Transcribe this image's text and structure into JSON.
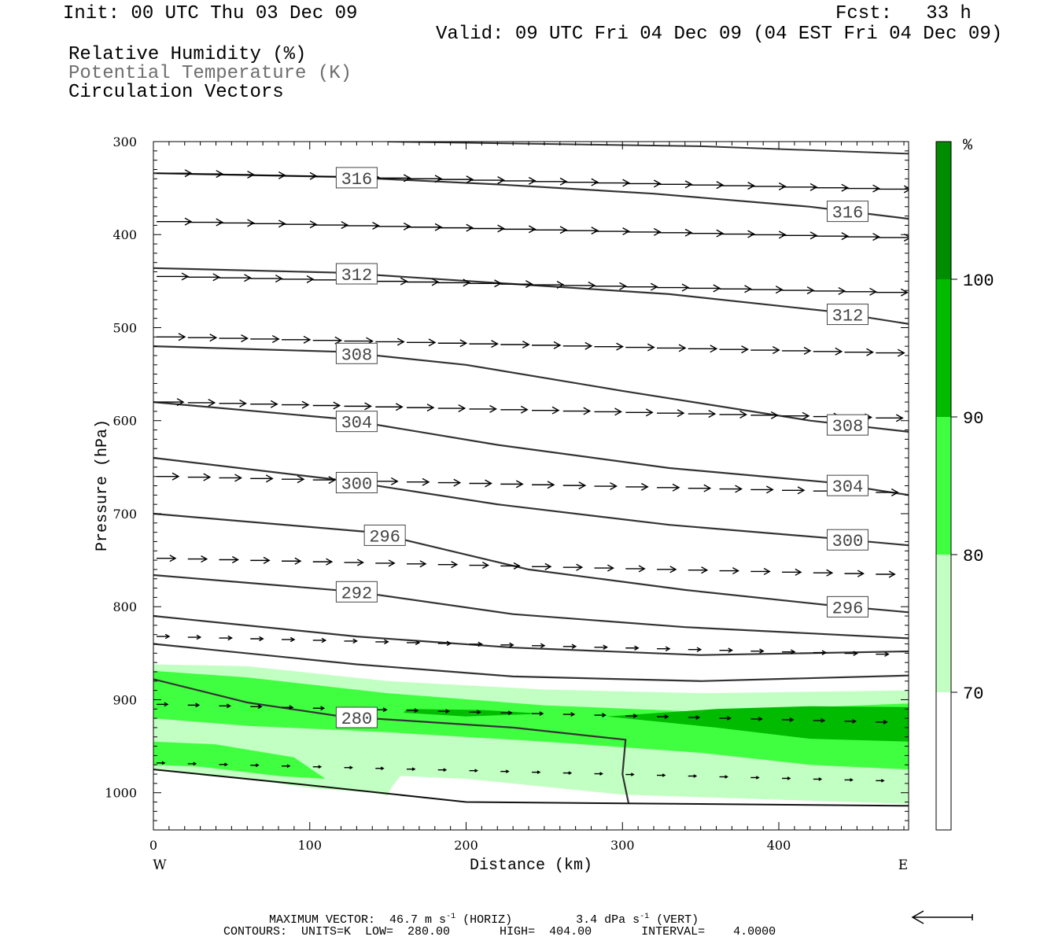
{
  "header": {
    "init": "Init: 00 UTC Thu 03 Dec 09",
    "fcst": "Fcst:   33 h",
    "valid": "Valid: 09 UTC Fri 04 Dec 09 (04 EST Fri 04 Dec 09)",
    "fields": [
      "Relative Humidity (%)",
      "Potential Temperature (K)",
      "Circulation Vectors"
    ]
  },
  "footer": {
    "max_vector_label": "MAXIMUM VECTOR:",
    "horiz_value": "46.7 m s",
    "horiz_unit": "(HORIZ)",
    "vert_value": "3.4 dPa s",
    "vert_unit": "(VERT)",
    "exponent": "-1",
    "contours": "CONTOURS:  UNITS=K  LOW=  280.00       HIGH=  404.00       INTERVAL=    4.0000"
  },
  "colors": {
    "rh70": "#c2ffc2",
    "rh80": "#40ff40",
    "rh90": "#00bb00",
    "rh100": "#008c00",
    "theta_line": "#333333"
  },
  "chart_data": {
    "type": "cross-section",
    "xlabel": "Distance (km)",
    "ylabel": "Pressure (hPa)",
    "xlim": [
      0,
      483
    ],
    "ylim": [
      1040,
      300
    ],
    "x_ticks": [
      0,
      100,
      200,
      300,
      400
    ],
    "y_ticks": [
      300,
      400,
      500,
      600,
      700,
      800,
      900,
      1000
    ],
    "x_end_labels": {
      "left": "W",
      "right": "E"
    },
    "colorbar": {
      "unit": "%",
      "levels": [
        70,
        80,
        90,
        100
      ],
      "tick_labels": [
        "70",
        "80",
        "90",
        "100"
      ]
    },
    "theta_contours": [
      {
        "level": 316,
        "points": [
          [
            0,
            334
          ],
          [
            120,
            338
          ],
          [
            220,
            346
          ],
          [
            320,
            356
          ],
          [
            420,
            370
          ],
          [
            483,
            383
          ]
        ],
        "labels": [
          {
            "text": "316",
            "x": 130
          },
          {
            "text": "316",
            "x": 444
          }
        ]
      },
      {
        "level": 312,
        "points": [
          [
            0,
            436
          ],
          [
            120,
            441
          ],
          [
            220,
            452
          ],
          [
            330,
            464
          ],
          [
            430,
            482
          ],
          [
            483,
            496
          ]
        ],
        "labels": [
          {
            "text": "312",
            "x": 130
          },
          {
            "text": "312",
            "x": 444
          }
        ]
      },
      {
        "level": 308,
        "points": [
          [
            0,
            520
          ],
          [
            120,
            526
          ],
          [
            200,
            540
          ],
          [
            300,
            568
          ],
          [
            420,
            600
          ],
          [
            483,
            612
          ]
        ],
        "labels": [
          {
            "text": "308",
            "x": 130
          },
          {
            "text": "308",
            "x": 444
          }
        ]
      },
      {
        "level": 304,
        "points": [
          [
            0,
            580
          ],
          [
            120,
            598
          ],
          [
            220,
            626
          ],
          [
            330,
            651
          ],
          [
            430,
            666
          ],
          [
            483,
            680
          ]
        ],
        "labels": [
          {
            "text": "304",
            "x": 130
          },
          {
            "text": "304",
            "x": 444
          }
        ]
      },
      {
        "level": 300,
        "points": [
          [
            0,
            640
          ],
          [
            120,
            664
          ],
          [
            220,
            690
          ],
          [
            330,
            712
          ],
          [
            430,
            726
          ],
          [
            483,
            734
          ]
        ],
        "labels": [
          {
            "text": "300",
            "x": 130
          },
          {
            "text": "300",
            "x": 444
          }
        ]
      },
      {
        "level": 296,
        "points": [
          [
            0,
            700
          ],
          [
            140,
            720
          ],
          [
            240,
            760
          ],
          [
            340,
            782
          ],
          [
            430,
            798
          ],
          [
            483,
            806
          ]
        ],
        "labels": [
          {
            "text": "296",
            "x": 148
          },
          {
            "text": "296",
            "x": 444
          }
        ]
      },
      {
        "level": 292,
        "points": [
          [
            0,
            766
          ],
          [
            130,
            784
          ],
          [
            230,
            808
          ],
          [
            340,
            822
          ],
          [
            483,
            834
          ]
        ],
        "labels": [
          {
            "text": "292",
            "x": 130
          }
        ]
      },
      {
        "level": 288,
        "points": [
          [
            0,
            810
          ],
          [
            130,
            832
          ],
          [
            230,
            844
          ],
          [
            350,
            852
          ],
          [
            483,
            848
          ]
        ],
        "labels": []
      },
      {
        "level": 284,
        "points": [
          [
            0,
            840
          ],
          [
            130,
            862
          ],
          [
            230,
            875
          ],
          [
            350,
            880
          ],
          [
            483,
            874
          ]
        ],
        "labels": []
      },
      {
        "level": 280,
        "points": [
          [
            0,
            878
          ],
          [
            60,
            903
          ],
          [
            120,
            918
          ],
          [
            230,
            930
          ],
          [
            302,
            943
          ],
          [
            300,
            980
          ],
          [
            304,
            1012
          ]
        ],
        "labels": [
          {
            "text": "280",
            "x": 130
          }
        ]
      }
    ],
    "ground_line": [
      [
        0,
        975
      ],
      [
        100,
        992
      ],
      [
        200,
        1010
      ],
      [
        483,
        1014
      ]
    ],
    "upper_line": [
      [
        150,
        300
      ],
      [
        350,
        305
      ],
      [
        483,
        313
      ]
    ],
    "vector_rows": [
      {
        "p": 334,
        "x": [
          0,
          20,
          40,
          60,
          80,
          100,
          120,
          140,
          160,
          180,
          200,
          220,
          240,
          260,
          280,
          300,
          320,
          340,
          360,
          380,
          400,
          420,
          440,
          460
        ],
        "len": 44
      },
      {
        "p": 386,
        "x": [
          0,
          20,
          40,
          60,
          80,
          100,
          120,
          140,
          160,
          180,
          200,
          220,
          240,
          260,
          280,
          300,
          320,
          340,
          360,
          380,
          400,
          420,
          440,
          460
        ],
        "len": 44
      },
      {
        "p": 445,
        "x": [
          0,
          20,
          40,
          60,
          80,
          100,
          120,
          140,
          160,
          180,
          200,
          220,
          240,
          260,
          280,
          300,
          320,
          340,
          360,
          380,
          400,
          420,
          440,
          460
        ],
        "len": 40
      },
      {
        "p": 510,
        "x": [
          0,
          20,
          40,
          60,
          80,
          100,
          120,
          140,
          160,
          180,
          200,
          220,
          240,
          260,
          280,
          300,
          320,
          340,
          360,
          380,
          400,
          420,
          440,
          460
        ],
        "len": 36
      },
      {
        "p": 580,
        "x": [
          0,
          20,
          40,
          60,
          80,
          100,
          120,
          140,
          160,
          180,
          200,
          220,
          240,
          260,
          280,
          300,
          320,
          340,
          360,
          380,
          400,
          420,
          440,
          460
        ],
        "len": 34
      },
      {
        "p": 660,
        "x": [
          0,
          20,
          40,
          60,
          80,
          100,
          120,
          140,
          160,
          180,
          200,
          220,
          240,
          260,
          280,
          300,
          320,
          340,
          360,
          380,
          400,
          420,
          440,
          460
        ],
        "len": 28
      },
      {
        "p": 748,
        "x": [
          0,
          20,
          40,
          60,
          80,
          100,
          120,
          140,
          160,
          180,
          200,
          220,
          240,
          260,
          280,
          300,
          320,
          340,
          360,
          380,
          400,
          420,
          440,
          460
        ],
        "len": 24
      },
      {
        "p": 832,
        "x": [
          0,
          20,
          40,
          60,
          80,
          100,
          120,
          140,
          160,
          180,
          200,
          220,
          240,
          260,
          280,
          300,
          320,
          340,
          360,
          380,
          400,
          420,
          440,
          460
        ],
        "len": 16
      },
      {
        "p": 905,
        "x": [
          0,
          20,
          40,
          60,
          80,
          100,
          120,
          140,
          160,
          180,
          200,
          220,
          240,
          260,
          280,
          300,
          320,
          340,
          360,
          380,
          400,
          420,
          440,
          460
        ],
        "len": 14
      },
      {
        "p": 968,
        "x": [
          0,
          20,
          40,
          60,
          80,
          100,
          120,
          140,
          160,
          180,
          200,
          220,
          240,
          260,
          280,
          300,
          320,
          340,
          360,
          380,
          400,
          420,
          440,
          460
        ],
        "len": 10
      }
    ]
  }
}
